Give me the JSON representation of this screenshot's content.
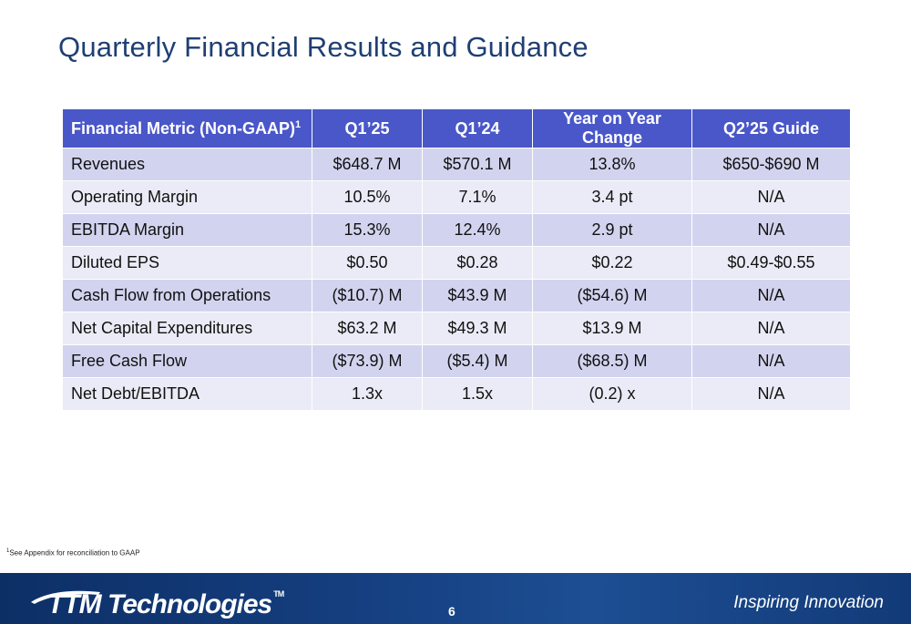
{
  "slide": {
    "title": "Quarterly Financial Results and Guidance",
    "page_number": "6"
  },
  "table": {
    "header": {
      "metric": "Financial Metric (Non-GAAP)",
      "metric_sup": "1",
      "q1_25": "Q1’25",
      "q1_24": "Q1’24",
      "yoy": "Year on Year Change",
      "q2_guide": "Q2’25 Guide"
    },
    "rows": [
      {
        "metric": "Revenues",
        "q1_25": "$648.7 M",
        "q1_24": "$570.1 M",
        "yoy": "13.8%",
        "q2_guide": "$650-$690 M"
      },
      {
        "metric": "Operating Margin",
        "q1_25": "10.5%",
        "q1_24": "7.1%",
        "yoy": "3.4 pt",
        "q2_guide": "N/A"
      },
      {
        "metric": "EBITDA Margin",
        "q1_25": "15.3%",
        "q1_24": "12.4%",
        "yoy": "2.9 pt",
        "q2_guide": "N/A"
      },
      {
        "metric": "Diluted EPS",
        "q1_25": "$0.50",
        "q1_24": "$0.28",
        "yoy": "$0.22",
        "q2_guide": "$0.49-$0.55"
      },
      {
        "metric": "Cash Flow from Operations",
        "q1_25": "($10.7) M",
        "q1_24": "$43.9 M",
        "yoy": "($54.6) M",
        "q2_guide": "N/A"
      },
      {
        "metric": "Net Capital Expenditures",
        "q1_25": "$63.2 M",
        "q1_24": "$49.3 M",
        "yoy": "$13.9 M",
        "q2_guide": "N/A"
      },
      {
        "metric": "Free Cash Flow",
        "q1_25": "($73.9) M",
        "q1_24": "($5.4) M",
        "yoy": "($68.5) M",
        "q2_guide": "N/A"
      },
      {
        "metric": "Net Debt/EBITDA",
        "q1_25": "1.3x",
        "q1_24": "1.5x",
        "yoy": "(0.2) x",
        "q2_guide": "N/A"
      }
    ]
  },
  "footnote": {
    "sup": "1",
    "text": "See Appendix for reconciliation to GAAP"
  },
  "footer": {
    "logo_text": "TTM Technologies",
    "logo_mark": "TM",
    "tagline": "Inspiring Innovation"
  },
  "colors": {
    "title": "#1f3f73",
    "header_bg": "#4a57c9",
    "row_odd": "#d2d4ef",
    "row_even": "#eaebf6",
    "footer_bg": "#153f80"
  }
}
